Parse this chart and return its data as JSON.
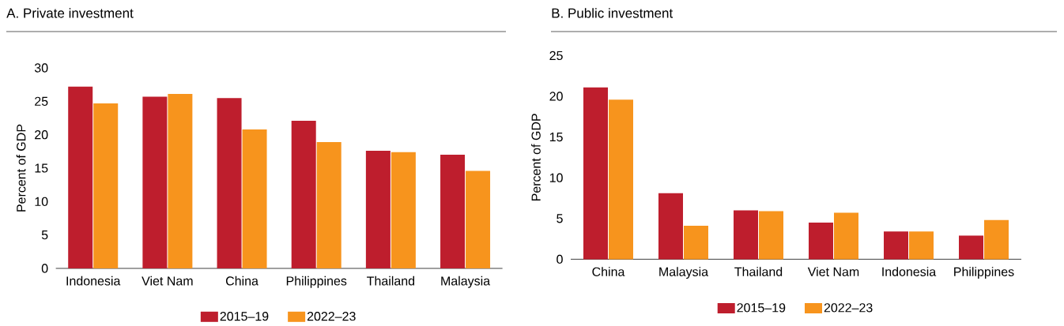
{
  "chart_data": [
    {
      "type": "bar",
      "title": "A. Private investment",
      "ylabel": "Percent of GDP",
      "categories": [
        "Indonesia",
        "Viet Nam",
        "China",
        "Philippines",
        "Thailand",
        "Malaysia"
      ],
      "series": [
        {
          "name": "2015–19",
          "color": "#be1e2d",
          "values": [
            27.2,
            25.7,
            25.5,
            22.1,
            17.6,
            17.0
          ]
        },
        {
          "name": "2022–23",
          "color": "#f7941d",
          "values": [
            24.7,
            26.1,
            20.8,
            18.9,
            17.4,
            14.6
          ]
        }
      ],
      "ylim": [
        0,
        30
      ],
      "yticks": [
        0,
        5,
        10,
        15,
        20,
        25,
        30
      ],
      "legend": "bottom"
    },
    {
      "type": "bar",
      "title": "B. Public investment",
      "ylabel": "Percent of GDP",
      "categories": [
        "China",
        "Malaysia",
        "Thailand",
        "Viet Nam",
        "Indonesia",
        "Philippines"
      ],
      "series": [
        {
          "name": "2015–19",
          "color": "#be1e2d",
          "values": [
            21.1,
            8.1,
            6.0,
            4.5,
            3.4,
            2.9
          ]
        },
        {
          "name": "2022–23",
          "color": "#f7941d",
          "values": [
            19.6,
            4.1,
            5.9,
            5.7,
            3.4,
            4.8
          ]
        }
      ],
      "ylim": [
        0,
        25
      ],
      "yticks": [
        0,
        5,
        10,
        15,
        20,
        25
      ],
      "legend": "bottom"
    }
  ]
}
